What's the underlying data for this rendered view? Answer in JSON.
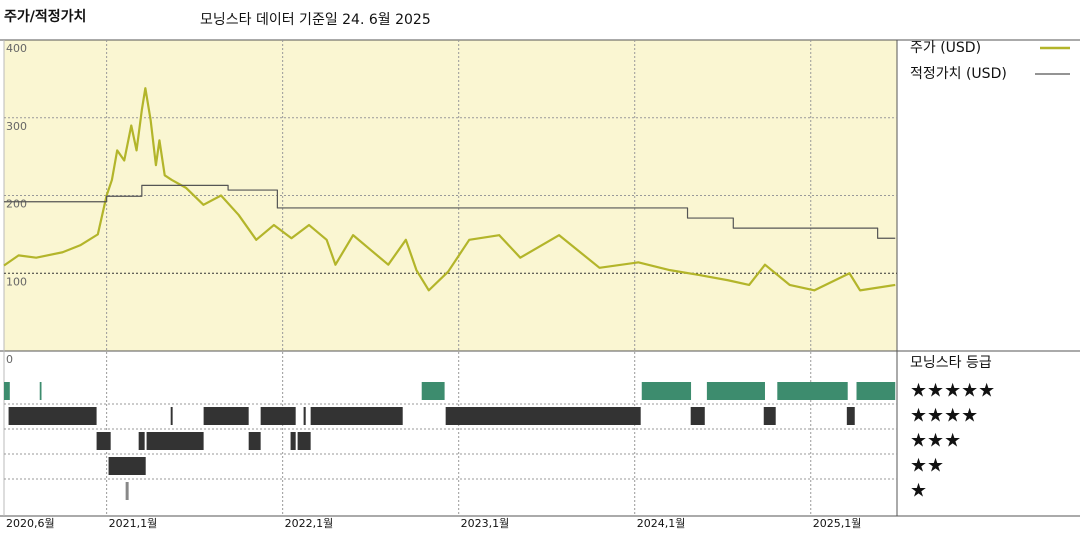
{
  "chart_data": {
    "type": "line",
    "title": "주가/적정가치",
    "subtitle": "모닝스타 데이터 기준일 24. 6월 2025",
    "xlim": [
      2020.417,
      2025.49
    ],
    "xticks": [
      {
        "value": 2020.417,
        "label": "2020,6월"
      },
      {
        "value": 2021,
        "label": "2021,1월"
      },
      {
        "value": 2022,
        "label": "2022,1월"
      },
      {
        "value": 2023,
        "label": "2023,1월"
      },
      {
        "value": 2024,
        "label": "2024,1월"
      },
      {
        "value": 2025,
        "label": "2025,1월"
      }
    ],
    "ylim": [
      0,
      400
    ],
    "yticks": [
      0,
      100,
      200,
      300,
      400
    ],
    "grid": true,
    "series": [
      {
        "name": "주가 (USD)",
        "color": "#b3b52a",
        "step": false,
        "x": [
          2020.417,
          2020.5,
          2020.6,
          2020.75,
          2020.85,
          2020.95,
          2021.0,
          2021.03,
          2021.06,
          2021.1,
          2021.14,
          2021.17,
          2021.2,
          2021.22,
          2021.25,
          2021.28,
          2021.3,
          2021.33,
          2021.37,
          2021.45,
          2021.55,
          2021.65,
          2021.75,
          2021.85,
          2021.95,
          2022.05,
          2022.15,
          2022.25,
          2022.3,
          2022.4,
          2022.5,
          2022.6,
          2022.7,
          2022.76,
          2022.83,
          2022.94,
          2023.06,
          2023.23,
          2023.35,
          2023.57,
          2023.8,
          2024.02,
          2024.2,
          2024.36,
          2024.53,
          2024.65,
          2024.74,
          2024.88,
          2025.02,
          2025.22,
          2025.28,
          2025.48
        ],
        "values": [
          110,
          123,
          120,
          127,
          136,
          150,
          200,
          220,
          258,
          245,
          290,
          258,
          310,
          338,
          297,
          239,
          271,
          226,
          220,
          210,
          188,
          200,
          175,
          143,
          162,
          145,
          162,
          143,
          111,
          149,
          130,
          111,
          143,
          104,
          78,
          102,
          143,
          149,
          120,
          149,
          107,
          114,
          104,
          98,
          91,
          85,
          111,
          85,
          78,
          100,
          78,
          85
        ]
      },
      {
        "name": "적정가치 (USD)",
        "color": "#555555",
        "step": true,
        "x": [
          2020.417,
          2021.0,
          2021.2,
          2021.69,
          2021.97,
          2024.3,
          2024.56,
          2024.64,
          2025.38,
          2025.48
        ],
        "values": [
          192,
          199,
          213,
          207,
          184,
          171,
          158,
          158,
          145,
          145
        ]
      }
    ],
    "ratings": {
      "title": "모닝스타 등급",
      "rows": [
        {
          "name": "★★★★★",
          "color": "#3d8c6e",
          "periods": [
            [
              2020.417,
              2020.45
            ],
            [
              2020.62,
              2020.63
            ],
            [
              2022.79,
              2022.92
            ],
            [
              2024.04,
              2024.32
            ],
            [
              2024.41,
              2024.74
            ],
            [
              2024.81,
              2025.21
            ],
            [
              2025.26,
              2025.48
            ]
          ]
        },
        {
          "name": "★★★★",
          "color": "#333333",
          "periods": [
            [
              2020.443,
              2020.943
            ],
            [
              2021.364,
              2021.375
            ],
            [
              2021.551,
              2021.807
            ],
            [
              2021.875,
              2022.074
            ],
            [
              2022.119,
              2022.131
            ],
            [
              2022.159,
              2022.682
            ],
            [
              2022.926,
              2024.034
            ],
            [
              2024.318,
              2024.398
            ],
            [
              2024.733,
              2024.801
            ],
            [
              2025.205,
              2025.25
            ]
          ]
        },
        {
          "name": "★★★",
          "color": "#333333",
          "periods": [
            [
              2020.943,
              2021.023
            ],
            [
              2021.182,
              2021.216
            ],
            [
              2021.227,
              2021.551
            ],
            [
              2021.807,
              2021.875
            ],
            [
              2022.045,
              2022.074
            ],
            [
              2022.085,
              2022.159
            ]
          ]
        },
        {
          "name": "★★",
          "color": "#333333",
          "periods": [
            [
              2021.011,
              2021.222
            ]
          ]
        },
        {
          "name": "★",
          "color": "#888888",
          "periods": [
            [
              2021.108,
              2021.125
            ]
          ]
        }
      ]
    }
  }
}
